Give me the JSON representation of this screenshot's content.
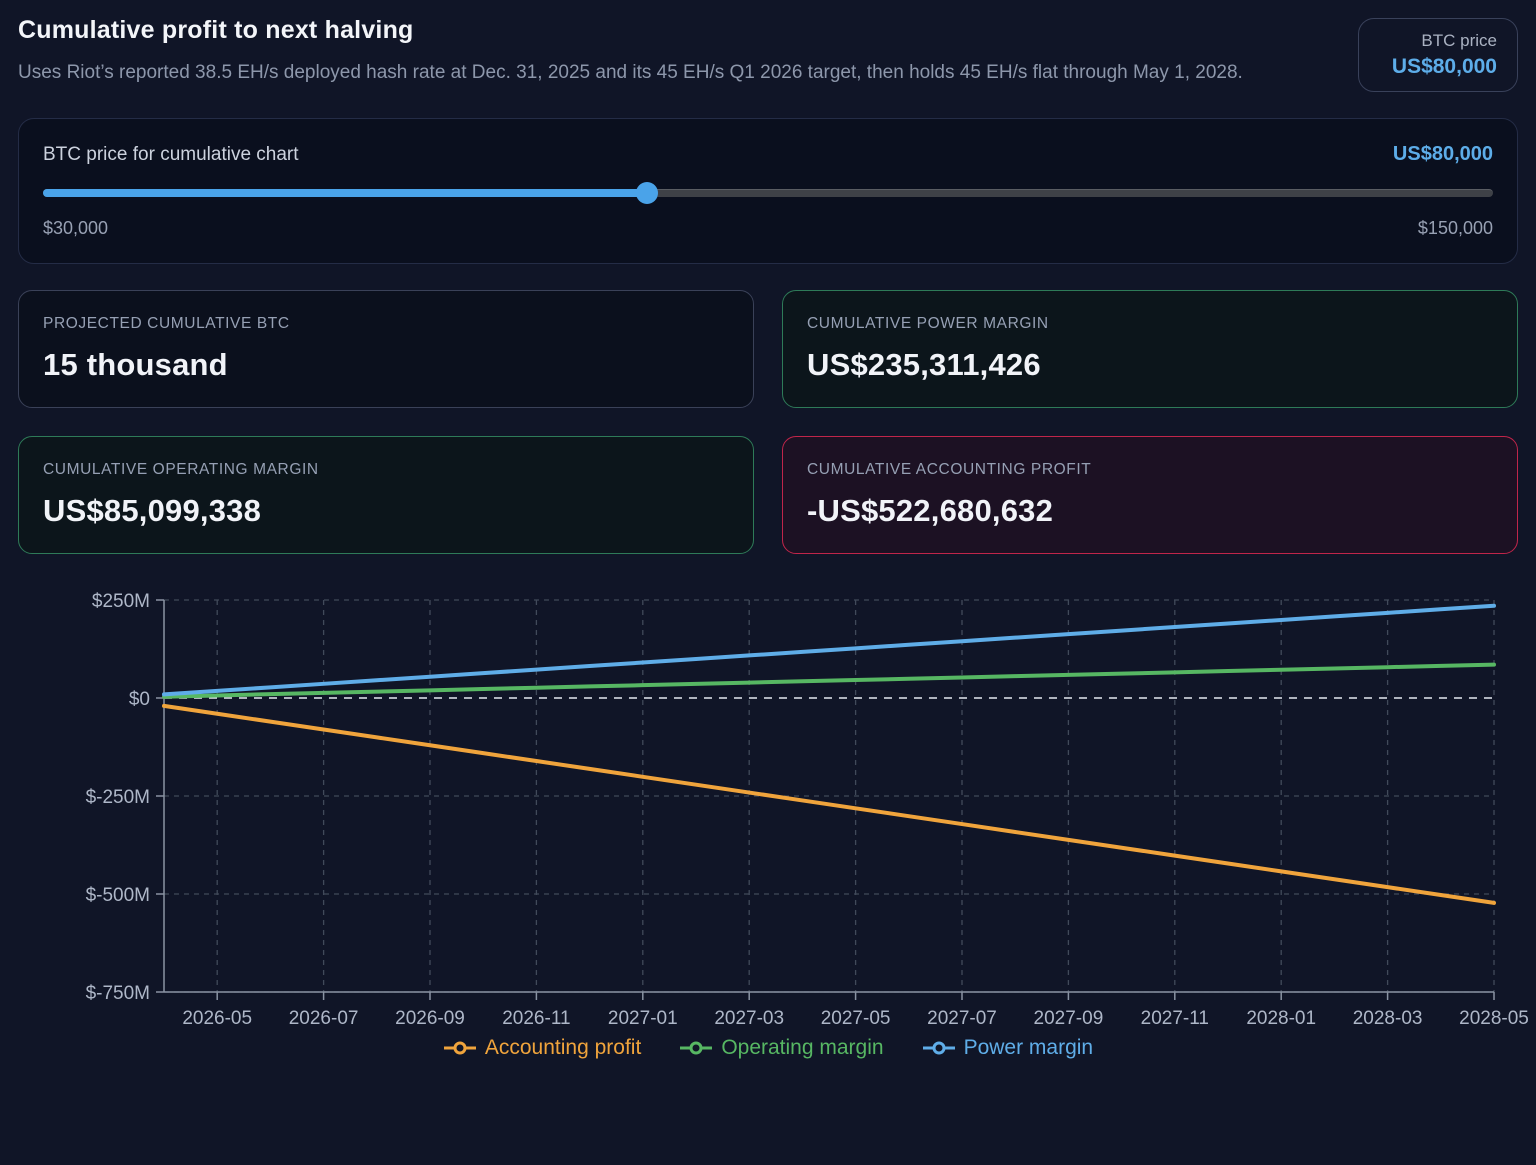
{
  "header": {
    "title": "Cumulative profit to next halving",
    "subtitle": "Uses Riot’s reported 38.5 EH/s deployed hash rate at Dec. 31, 2025 and its 45 EH/s Q1 2026 target, then holds 45 EH/s flat through May 1, 2028.",
    "btc_price_badge": {
      "label": "BTC price",
      "value": "US$80,000"
    }
  },
  "slider": {
    "label": "BTC price for cumulative chart",
    "value_display": "US$80,000",
    "min_display": "$30,000",
    "max_display": "$150,000",
    "min": 30000,
    "max": 150000,
    "value": 80000,
    "accent_color": "#4aa3e9"
  },
  "stats": [
    {
      "label": "PROJECTED CUMULATIVE BTC",
      "value": "15 thousand",
      "variant": "neutral"
    },
    {
      "label": "CUMULATIVE POWER MARGIN",
      "value": "US$235,311,426",
      "variant": "green"
    },
    {
      "label": "CUMULATIVE OPERATING MARGIN",
      "value": "US$85,099,338",
      "variant": "green"
    },
    {
      "label": "CUMULATIVE ACCOUNTING PROFIT",
      "value": "-US$522,680,632",
      "variant": "red"
    }
  ],
  "chart_data": {
    "type": "line",
    "unit": "USD millions",
    "x": [
      "2026-04",
      "2026-05",
      "2026-06",
      "2026-07",
      "2026-08",
      "2026-09",
      "2026-10",
      "2026-11",
      "2026-12",
      "2027-01",
      "2027-02",
      "2027-03",
      "2027-04",
      "2027-05",
      "2027-06",
      "2027-07",
      "2027-08",
      "2027-09",
      "2027-10",
      "2027-11",
      "2027-12",
      "2028-01",
      "2028-02",
      "2028-03",
      "2028-04",
      "2028-05"
    ],
    "x_tick_labels": [
      "2026-05",
      "2026-07",
      "2026-09",
      "2026-11",
      "2027-01",
      "2027-03",
      "2027-05",
      "2027-07",
      "2027-09",
      "2027-11",
      "2028-01",
      "2028-03",
      "2028-05"
    ],
    "y_ticks": [
      {
        "label": "$250M",
        "value": 250
      },
      {
        "label": "$0",
        "value": 0
      },
      {
        "label": "$-250M",
        "value": -250
      },
      {
        "label": "$-500M",
        "value": -500
      },
      {
        "label": "$-750M",
        "value": -750
      }
    ],
    "ylim": [
      -750,
      250
    ],
    "grid": "dashed",
    "zero_line": true,
    "legend_position": "bottom",
    "series": [
      {
        "name": "Accounting profit",
        "color": "#f0a43c",
        "values": [
          -20.1,
          -40.2,
          -60.3,
          -80.4,
          -100.5,
          -120.6,
          -140.7,
          -160.8,
          -180.9,
          -201.0,
          -221.1,
          -241.2,
          -261.3,
          -281.4,
          -301.5,
          -321.6,
          -341.8,
          -361.9,
          -382.0,
          -402.1,
          -422.2,
          -442.3,
          -462.4,
          -482.5,
          -502.6,
          -522.7
        ]
      },
      {
        "name": "Operating margin",
        "color": "#57b763",
        "values": [
          3.3,
          6.5,
          9.8,
          13.1,
          16.4,
          19.6,
          22.9,
          26.2,
          29.5,
          32.7,
          36.0,
          39.3,
          42.6,
          45.8,
          49.1,
          52.4,
          55.7,
          58.9,
          62.2,
          65.5,
          68.8,
          72.0,
          75.3,
          78.6,
          81.9,
          85.1
        ]
      },
      {
        "name": "Power margin",
        "color": "#5fade8",
        "values": [
          9.1,
          18.1,
          27.2,
          36.2,
          45.3,
          54.3,
          63.4,
          72.4,
          81.5,
          90.5,
          99.6,
          108.6,
          117.7,
          126.7,
          135.8,
          144.8,
          153.9,
          162.9,
          172.0,
          181.0,
          190.1,
          199.1,
          208.2,
          217.2,
          226.3,
          235.3
        ]
      }
    ]
  }
}
